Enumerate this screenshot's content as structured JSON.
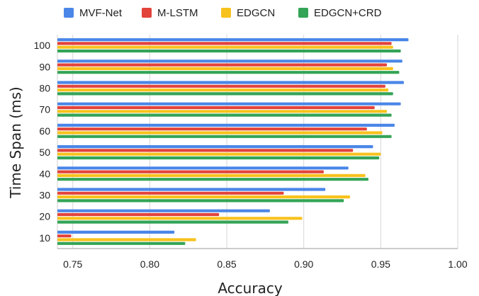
{
  "chart_data": {
    "type": "bar",
    "orientation": "horizontal",
    "title": "",
    "xlabel": "Accuracy",
    "ylabel": "Time Span (ms)",
    "categories": [
      "100",
      "90",
      "80",
      "70",
      "60",
      "50",
      "40",
      "30",
      "20",
      "10"
    ],
    "xlim": [
      0.74,
      1.0
    ],
    "xticks": [
      "0.75",
      "0.80",
      "0.85",
      "0.90",
      "0.95",
      "1.00"
    ],
    "grid": "vertical",
    "legend_position": "top",
    "series": [
      {
        "name": "MVF-Net",
        "color": "#4A86E8",
        "values": [
          0.968,
          0.964,
          0.965,
          0.963,
          0.959,
          0.945,
          0.929,
          0.914,
          0.878,
          0.816
        ]
      },
      {
        "name": "M-LSTM",
        "color": "#E2433B",
        "values": [
          0.957,
          0.954,
          0.953,
          0.946,
          0.941,
          0.932,
          0.913,
          0.887,
          0.845,
          0.749
        ]
      },
      {
        "name": "EDGCN",
        "color": "#F8C21C",
        "values": [
          0.958,
          0.958,
          0.955,
          0.954,
          0.951,
          0.95,
          0.94,
          0.93,
          0.899,
          0.83
        ]
      },
      {
        "name": "EDGCN+CRD",
        "color": "#33A456",
        "values": [
          0.963,
          0.962,
          0.958,
          0.957,
          0.957,
          0.949,
          0.942,
          0.926,
          0.89,
          0.823
        ]
      }
    ]
  }
}
